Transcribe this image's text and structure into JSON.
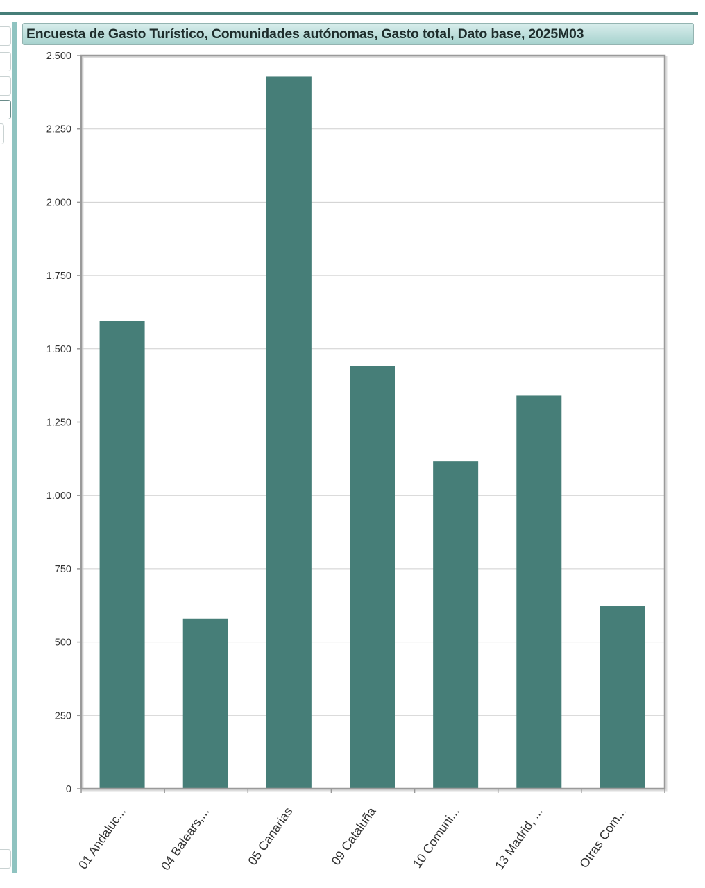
{
  "title": "Encuesta de Gasto Turístico, Comunidades autónomas, Gasto total, Dato base, 2025M03",
  "colors": {
    "bar": "#467e78",
    "accent": "#467e78",
    "panel_border": "#8fc3c0"
  },
  "chart_data": {
    "type": "bar",
    "title": "Encuesta de Gasto Turístico, Comunidades autónomas, Gasto total, Dato base, 2025M03",
    "categories": [
      "01 Andaluc...",
      "04 Balears,...",
      "05 Canarias",
      "09 Cataluña",
      "10 Comuni...",
      "13 Madrid, ...",
      "Otras Com..."
    ],
    "values": [
      1595,
      580,
      2428,
      1442,
      1116,
      1340,
      622
    ],
    "ylim": [
      0,
      2500
    ],
    "yticks": [
      0,
      250,
      500,
      750,
      1000,
      1250,
      1500,
      1750,
      2000,
      2250,
      2500
    ],
    "ytick_labels": [
      "0",
      "250",
      "500",
      "750",
      "1.000",
      "1.250",
      "1.500",
      "1.750",
      "2.000",
      "2.250",
      "2.500"
    ],
    "grid": true,
    "legend": "none"
  }
}
